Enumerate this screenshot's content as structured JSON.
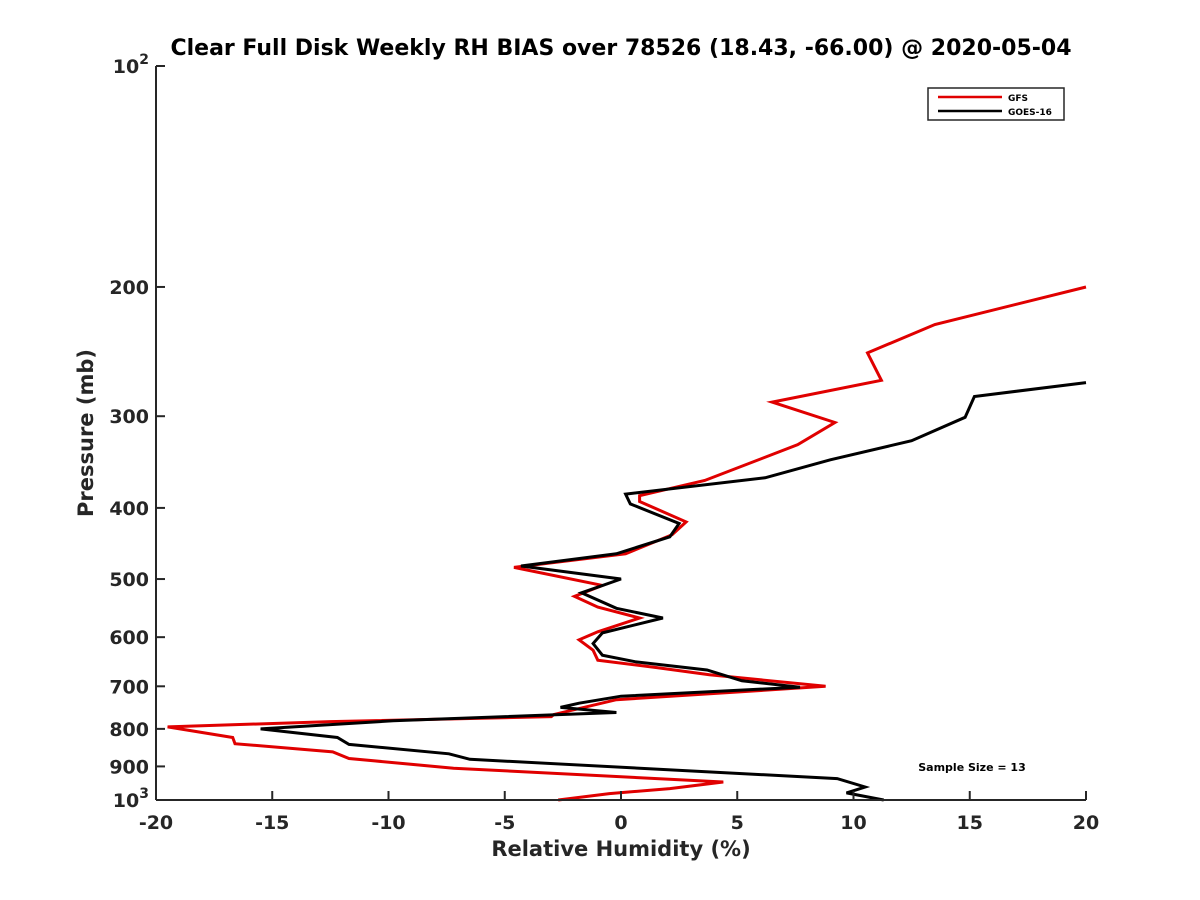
{
  "chart_data": {
    "type": "line",
    "title": "Clear Full Disk Weekly RH BIAS over 78526 (18.43, -66.00) @ 2020-05-04",
    "xlabel": "Relative Humidity (%)",
    "ylabel": "Pressure (mb)",
    "xlim": [
      -20,
      20
    ],
    "ylim": [
      100,
      1000
    ],
    "y_scale": "log",
    "y_reversed": true,
    "grid": false,
    "x_ticks": [
      "-20",
      "-15",
      "-10",
      "-5",
      "0",
      "5",
      "10",
      "15",
      "20"
    ],
    "y_ticks": [
      {
        "value": 100,
        "base": "10",
        "exp": "2"
      },
      {
        "value": 200,
        "base": "200",
        "exp": ""
      },
      {
        "value": 300,
        "base": "300",
        "exp": ""
      },
      {
        "value": 400,
        "base": "400",
        "exp": ""
      },
      {
        "value": 500,
        "base": "500",
        "exp": ""
      },
      {
        "value": 600,
        "base": "600",
        "exp": ""
      },
      {
        "value": 700,
        "base": "700",
        "exp": ""
      },
      {
        "value": 800,
        "base": "800",
        "exp": ""
      },
      {
        "value": 900,
        "base": "900",
        "exp": ""
      },
      {
        "value": 1000,
        "base": "10",
        "exp": "3"
      }
    ],
    "legend_position": "top-right",
    "series": [
      {
        "name": "GFS",
        "color": "#e00000",
        "x": [
          20,
          13.5,
          10.6,
          11.2,
          6.5,
          9.2,
          7.6,
          3.6,
          0.8,
          0.8,
          2.8,
          2.2,
          0.2,
          -4.6,
          -0.8,
          -2.0,
          -1.0,
          0.8,
          -1.0,
          -1.8,
          -1.2,
          -1.0,
          1.5,
          3.8,
          8.8,
          -0.2,
          -2.9,
          -3.0,
          -12.5,
          -19.5,
          -16.7,
          -16.6,
          -12.4,
          -11.7,
          -7.2,
          4.4,
          2.1,
          -0.5,
          -2.7
        ],
        "y": [
          200,
          225,
          246,
          268,
          287,
          306,
          328,
          367,
          385,
          392,
          418,
          435,
          462,
          482,
          510,
          528,
          546,
          565,
          590,
          605,
          625,
          645,
          660,
          675,
          700,
          730,
          765,
          770,
          782,
          795,
          822,
          838,
          860,
          878,
          905,
          945,
          965,
          980,
          1000
        ]
      },
      {
        "name": "GOES-16",
        "color": "#000000",
        "x": [
          20,
          15.2,
          14.8,
          12.5,
          9.0,
          6.2,
          0.2,
          0.4,
          2.5,
          2.1,
          -0.2,
          -4.3,
          0.0,
          -1.7,
          -0.2,
          1.8,
          -0.8,
          -1.2,
          -0.8,
          0.6,
          3.7,
          5.2,
          7.7,
          0.0,
          -1.8,
          -2.6,
          -0.2,
          -9.8,
          -15.5,
          -12.2,
          -11.7,
          -7.4,
          -6.5,
          9.3,
          10.5,
          9.7,
          11.3
        ],
        "y": [
          270,
          282,
          301,
          324,
          344,
          364,
          383,
          395,
          420,
          438,
          462,
          480,
          500,
          522,
          548,
          565,
          592,
          612,
          635,
          648,
          665,
          688,
          702,
          722,
          738,
          748,
          760,
          780,
          800,
          822,
          840,
          865,
          880,
          935,
          960,
          978,
          1000
        ]
      }
    ],
    "annotations": [
      "Sample Size = 13"
    ]
  }
}
